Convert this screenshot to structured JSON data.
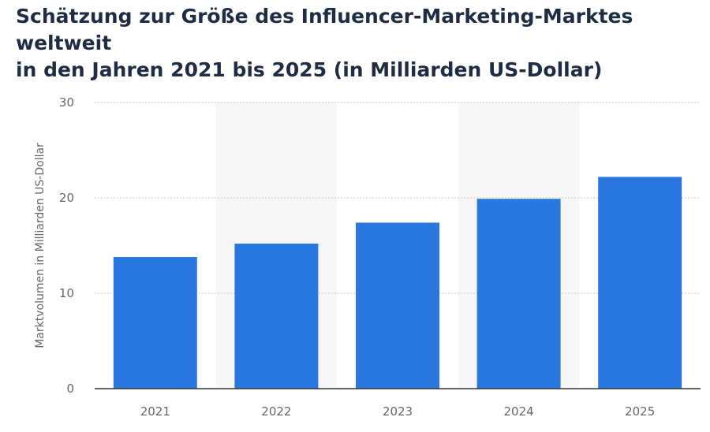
{
  "title_lines": [
    "Schätzung zur Größe des Influencer-Marketing-Marktes weltweit",
    "in den Jahren 2021 bis 2025 (in Milliarden US-Dollar)"
  ],
  "chart_data": {
    "type": "bar",
    "title": "Schätzung zur Größe des Influencer-Marketing-Marktes weltweit in den Jahren 2021 bis 2025 (in Milliarden US-Dollar)",
    "categories": [
      "2021",
      "2022",
      "2023",
      "2024",
      "2025"
    ],
    "values": [
      13.8,
      15.2,
      17.4,
      19.9,
      22.2
    ],
    "xlabel": "",
    "ylabel": "Marktvolumen in Milliarden US-Dollar",
    "ylim": [
      0,
      30
    ],
    "yticks": [
      0,
      10,
      20,
      30
    ],
    "grid": true,
    "bar_color": "#2a77e0",
    "band_color": "#f7f7f7"
  }
}
